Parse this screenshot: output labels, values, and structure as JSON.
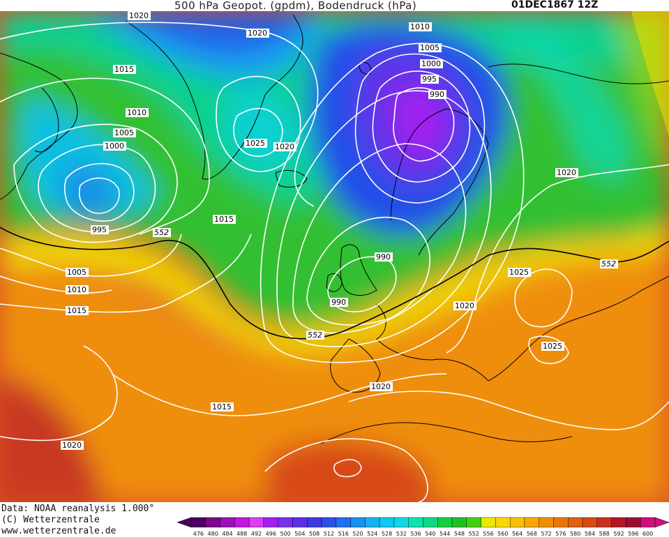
{
  "header": {
    "title": "500 hPa Geopot. (gpdm), Bodendruck (hPa)",
    "datestamp": "01DEC1867 12Z"
  },
  "footer": {
    "data_source": "Data: NOAA reanalysis 1.000°",
    "copyright": "(C) Wetterzentrale",
    "website": "www.wetterzentrale.de"
  },
  "legend": {
    "ticks": [
      "476",
      "480",
      "484",
      "488",
      "492",
      "496",
      "500",
      "504",
      "508",
      "512",
      "516",
      "520",
      "524",
      "528",
      "532",
      "536",
      "540",
      "544",
      "548",
      "552",
      "556",
      "560",
      "564",
      "568",
      "572",
      "576",
      "580",
      "584",
      "588",
      "592",
      "596",
      "600"
    ],
    "colors": [
      "#4b0060",
      "#7a0a8a",
      "#9a10b8",
      "#c018e0",
      "#d840f0",
      "#a020f0",
      "#7a2ef0",
      "#5a30e8",
      "#3a3ae0",
      "#2a50e8",
      "#2070f0",
      "#1a90f0",
      "#18b0f0",
      "#10c8f0",
      "#10d8e0",
      "#10e0b0",
      "#10d880",
      "#10d040",
      "#20c020",
      "#40d010",
      "#e8e800",
      "#f8d800",
      "#f8c000",
      "#f8a800",
      "#f09000",
      "#e87800",
      "#e06010",
      "#d84818",
      "#c83020",
      "#b01828",
      "#981030",
      "#d0107a"
    ]
  },
  "map": {
    "isobar_labels": [
      "1020",
      "1020",
      "1015",
      "1010",
      "1005",
      "1000",
      "995",
      "1025",
      "1020",
      "1015",
      "1010",
      "1005",
      "1000",
      "995",
      "990",
      "1020",
      "990",
      "990",
      "1005",
      "1010",
      "1015",
      "1025",
      "1020",
      "1025",
      "1020",
      "1015",
      "1020"
    ],
    "height_labels": [
      "552",
      "552",
      "552"
    ],
    "colors": {
      "isobar": "#ffffff",
      "contour_552": "#000000",
      "coast": "#000000"
    }
  }
}
